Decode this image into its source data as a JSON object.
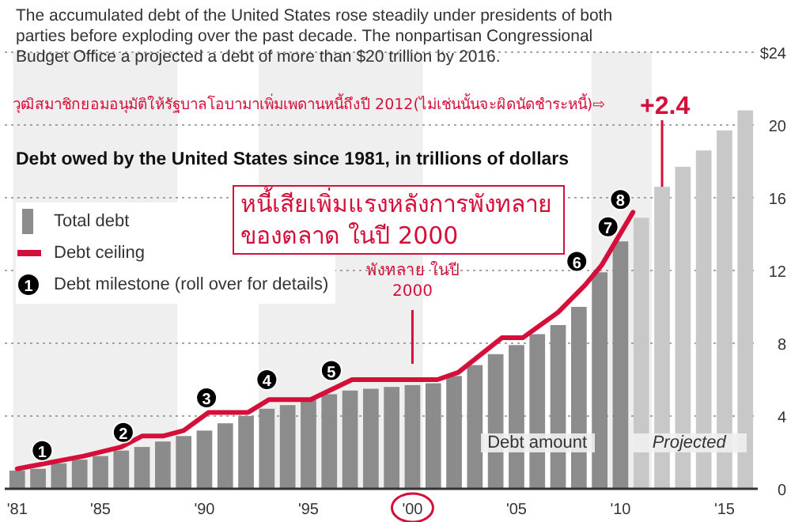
{
  "chart_data": {
    "type": "bar",
    "title": "Debt owed by the United States since 1981, in trillions of dollars",
    "subtitle": "The accumulated debt of the United States rose steadily under presidents of both parties before exploding over the past decade. The nonpartisan Congressional Budget Office a projected a debt of more than $20 trillion by 2016.",
    "series": [
      {
        "name": "Total debt",
        "x": [
          1981,
          1982,
          1983,
          1984,
          1985,
          1986,
          1987,
          1988,
          1989,
          1990,
          1991,
          1992,
          1993,
          1994,
          1995,
          1996,
          1997,
          1998,
          1999,
          2000,
          2001,
          2002,
          2003,
          2004,
          2005,
          2006,
          2007,
          2008,
          2009,
          2010,
          2011,
          2012,
          2013,
          2014,
          2015,
          2016
        ],
        "values": [
          1.0,
          1.1,
          1.4,
          1.6,
          1.8,
          2.1,
          2.3,
          2.6,
          2.9,
          3.2,
          3.6,
          4.0,
          4.4,
          4.6,
          4.9,
          5.2,
          5.4,
          5.5,
          5.6,
          5.7,
          5.8,
          6.2,
          6.8,
          7.4,
          7.9,
          8.5,
          9.0,
          10.0,
          11.9,
          13.6,
          14.9,
          16.6,
          17.7,
          18.6,
          19.7,
          20.8
        ],
        "colors": [
          "#8c8c8c",
          "#8c8c8c",
          "#8c8c8c",
          "#8c8c8c",
          "#8c8c8c",
          "#8c8c8c",
          "#8c8c8c",
          "#8c8c8c",
          "#8c8c8c",
          "#8c8c8c",
          "#8c8c8c",
          "#8c8c8c",
          "#8c8c8c",
          "#8c8c8c",
          "#8c8c8c",
          "#8c8c8c",
          "#8c8c8c",
          "#8c8c8c",
          "#8c8c8c",
          "#8c8c8c",
          "#8c8c8c",
          "#8c8c8c",
          "#8c8c8c",
          "#8c8c8c",
          "#8c8c8c",
          "#8c8c8c",
          "#8c8c8c",
          "#8c8c8c",
          "#8c8c8c",
          "#8c8c8c",
          "#c8c8c8",
          "#c8c8c8",
          "#c8c8c8",
          "#c8c8c8",
          "#c8c8c8",
          "#c8c8c8"
        ]
      },
      {
        "name": "Debt ceiling",
        "type": "line",
        "color": "#d4103a",
        "x": [
          1981,
          1984.2,
          1986,
          1987,
          1988,
          1989,
          1990.2,
          1992.1,
          1993.1,
          1995.1,
          1997.1,
          2001.2,
          2002.2,
          2004.3,
          2005.3,
          2007,
          2008.3,
          2009.1,
          2010.6
        ],
        "values": [
          1.1,
          1.8,
          2.3,
          2.9,
          2.9,
          3.2,
          4.2,
          4.2,
          4.9,
          4.9,
          6.0,
          6.0,
          6.4,
          8.3,
          8.3,
          9.7,
          11.2,
          12.3,
          15.2
        ]
      },
      {
        "name": "Debt milestone (roll over for details)",
        "type": "scatter",
        "marker": "circle",
        "color": "#000000",
        "x": [
          1982.2,
          1986.1,
          1990.1,
          1993,
          1996.1,
          2007.9,
          2009.4,
          2010
        ],
        "values": [
          2.1,
          3.1,
          5.0,
          6.0,
          6.5,
          12.5,
          14.4,
          15.9
        ]
      }
    ],
    "xlim": [
      1980.4,
      2016.6
    ],
    "xticks": [
      {
        "value": 1981,
        "label": "'81"
      },
      {
        "value": 1985,
        "label": "'85"
      },
      {
        "value": 1990,
        "label": "'90"
      },
      {
        "value": 1995,
        "label": "'95"
      },
      {
        "value": 2000,
        "label": "'00"
      },
      {
        "value": 2005,
        "label": "'05"
      },
      {
        "value": 2010,
        "label": "'10"
      },
      {
        "value": 2015,
        "label": "'15"
      }
    ],
    "ylim": [
      0,
      24
    ],
    "yticks": [
      0,
      4,
      8,
      12,
      16,
      20,
      {
        "value": 24,
        "label": "$24"
      }
    ],
    "grid": "y",
    "legend": "left",
    "bands": [
      {
        "axis": "x",
        "from": 1980.8,
        "to": 1988.7,
        "color": "#efefef"
      },
      {
        "axis": "x",
        "from": 1992.6,
        "to": 2000.5,
        "color": "#efefef"
      },
      {
        "axis": "x",
        "from": 2008.6,
        "to": 2011.5,
        "color": "#efefef"
      }
    ],
    "annotations": [
      "วุฒิสมาชิกยอมอนุมัติให้รัฐบาลโอบามาเพิ่มเพดานหนี้ถึงปี 2012(ไม่เช่นนั้นจะผิดนัดชำระหนี้)⇨",
      {
        "text": "+2.4",
        "x": 2012,
        "y": 16.6
      },
      "หนี้เสียเพิ่มแรงหลังการพังทลายของตลาด ในปี 2000",
      "พังทลาย ในปี 2000",
      {
        "text": "Debt amount",
        "x": 2006,
        "y": 2.3
      },
      {
        "text": "Projected",
        "x": 2013.3,
        "y": 2.3
      },
      {
        "text": "1",
        "x": 1982.2,
        "y": 2.1
      },
      {
        "text": "2",
        "x": 1986.1,
        "y": 3.1
      },
      {
        "text": "3",
        "x": 1990.1,
        "y": 5.0
      },
      {
        "text": "4",
        "x": 1993,
        "y": 6.0
      },
      {
        "text": "5",
        "x": 1996.1,
        "y": 6.5
      },
      {
        "text": "6",
        "x": 2007.9,
        "y": 12.5
      },
      {
        "text": "7",
        "x": 2009.4,
        "y": 14.4
      },
      {
        "text": "8",
        "x": 2010,
        "y": 15.9
      }
    ]
  }
}
